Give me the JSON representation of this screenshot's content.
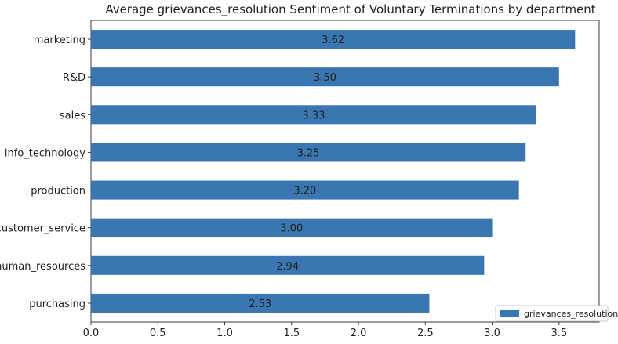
{
  "chart_data": {
    "type": "bar",
    "orientation": "horizontal",
    "title": "Average grievances_resolution Sentiment of Voluntary Terminations by department",
    "xlabel": "",
    "ylabel": "",
    "categories": [
      "marketing",
      "R&D",
      "sales",
      "info_technology",
      "production",
      "customer_service",
      "human_resources",
      "purchasing"
    ],
    "series": [
      {
        "name": "grievances_resolution",
        "values": [
          3.62,
          3.5,
          3.33,
          3.25,
          3.2,
          3.0,
          2.94,
          2.53
        ],
        "data_labels": [
          "3.62",
          "3.50",
          "3.33",
          "3.25",
          "3.20",
          "3.00",
          "2.94",
          "2.53"
        ],
        "color": "#3a76b2"
      }
    ],
    "xlim": [
      0,
      3.8
    ],
    "xticks": [
      0.0,
      0.5,
      1.0,
      1.5,
      2.0,
      2.5,
      3.0,
      3.5
    ],
    "xtick_labels": [
      "0.0",
      "0.5",
      "1.0",
      "1.5",
      "2.0",
      "2.5",
      "3.0",
      "3.5"
    ],
    "grid": false,
    "legend": {
      "position": "bottom-right",
      "entries": [
        "grievances_resolution"
      ]
    }
  }
}
